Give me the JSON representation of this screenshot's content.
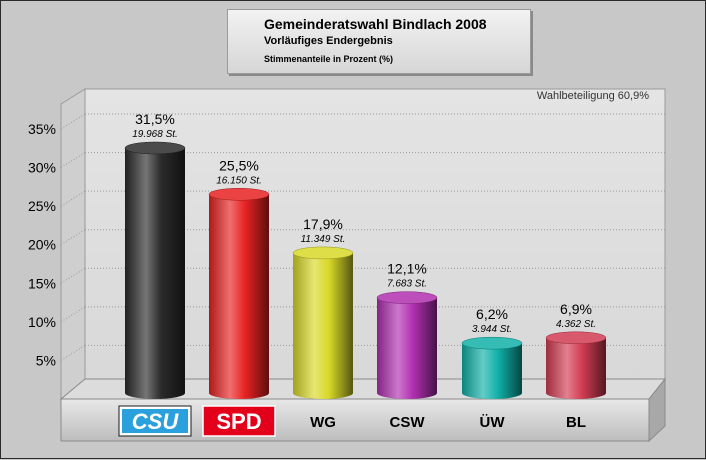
{
  "header": {
    "title": "Gemeinderatswahl Bindlach 2008",
    "subtitle": "Vorläufiges Endergebnis",
    "caption": "Stimmenanteile in Prozent (%)"
  },
  "chart_data": {
    "type": "bar",
    "title": "Gemeinderatswahl Bindlach 2008",
    "subtitle": "Vorläufiges Endergebnis",
    "ylabel": "",
    "xlabel": "",
    "ylim": [
      0,
      35
    ],
    "yticks": [
      5,
      10,
      15,
      20,
      25,
      30,
      35
    ],
    "ytick_labels": [
      "5%",
      "10%",
      "15%",
      "20%",
      "25%",
      "30%",
      "35%"
    ],
    "grid": true,
    "annotation": "Wahlbeteiligung 60,9%",
    "categories": [
      "CSU",
      "SPD",
      "WG",
      "CSW",
      "ÜW",
      "BL"
    ],
    "values": [
      31.5,
      25.5,
      17.9,
      12.1,
      6.2,
      6.9
    ],
    "value_labels": [
      "31,5%",
      "25,5%",
      "17,9%",
      "12,1%",
      "6,2%",
      "6,9%"
    ],
    "votes": [
      19968,
      16150,
      11349,
      7683,
      3944,
      4362
    ],
    "vote_labels": [
      "19.968 St.",
      "16.150 St.",
      "11.349 St.",
      "7.683 St.",
      "3.944 St.",
      "4.362 St."
    ],
    "colors": [
      "#2b2b2b",
      "#e82222",
      "#d8d828",
      "#b030b0",
      "#10b0a8",
      "#d23c52"
    ],
    "logo_categories": [
      "CSU",
      "SPD"
    ]
  }
}
